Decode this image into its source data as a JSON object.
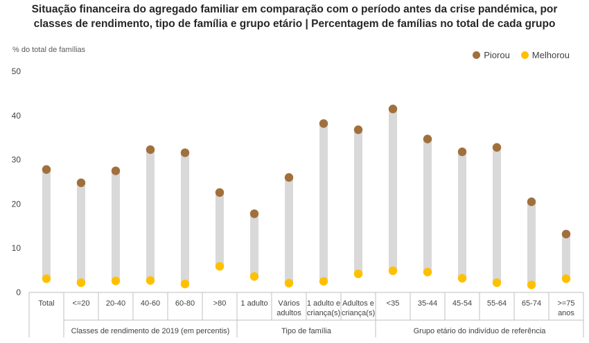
{
  "chart_data": {
    "type": "dot",
    "title_lines": [
      "Situação financeira do agregado familiar em comparação com o período antes da crise pandémica, por",
      "classes de rendimento, tipo de família e grupo etário | Percentagem de famílias no total de cada grupo"
    ],
    "ylabel": "% do total de famílias",
    "ylim": [
      0,
      50
    ],
    "yticks": [
      0,
      10,
      20,
      30,
      40,
      50
    ],
    "legend_position": "top-right",
    "categories": [
      [
        "Total"
      ],
      [
        "<=20"
      ],
      [
        "20-40"
      ],
      [
        "40-60"
      ],
      [
        "60-80"
      ],
      [
        ">80"
      ],
      [
        "1 adulto"
      ],
      [
        "Vários",
        "adultos"
      ],
      [
        "1 adulto e",
        "criança(s)"
      ],
      [
        "Adultos e",
        "criança(s)"
      ],
      [
        "<35"
      ],
      [
        "35-44"
      ],
      [
        "45-54"
      ],
      [
        "55-64"
      ],
      [
        "65-74"
      ],
      [
        ">=75",
        "anos"
      ]
    ],
    "groups": [
      {
        "label": "",
        "start": 0,
        "end": 0
      },
      {
        "label": "Classes de rendimento de 2019 (em percentis)",
        "start": 1,
        "end": 5
      },
      {
        "label": "Tipo de família",
        "start": 6,
        "end": 9
      },
      {
        "label": "Grupo etário do indivíduo de referência",
        "start": 10,
        "end": 15
      }
    ],
    "series": [
      {
        "name": "Piorou",
        "color": "#a0703c",
        "values": [
          27.8,
          24.8,
          27.5,
          32.3,
          31.6,
          22.6,
          17.8,
          26.0,
          38.2,
          36.8,
          41.5,
          34.7,
          31.8,
          32.8,
          20.5,
          13.2
        ]
      },
      {
        "name": "Melhorou",
        "color": "#ffc000",
        "values": [
          3.1,
          2.2,
          2.6,
          2.7,
          1.9,
          5.9,
          3.6,
          2.1,
          2.5,
          4.2,
          4.9,
          4.6,
          3.2,
          2.2,
          1.7,
          3.1
        ]
      }
    ],
    "range_bar_color": "#d9d9d9"
  }
}
